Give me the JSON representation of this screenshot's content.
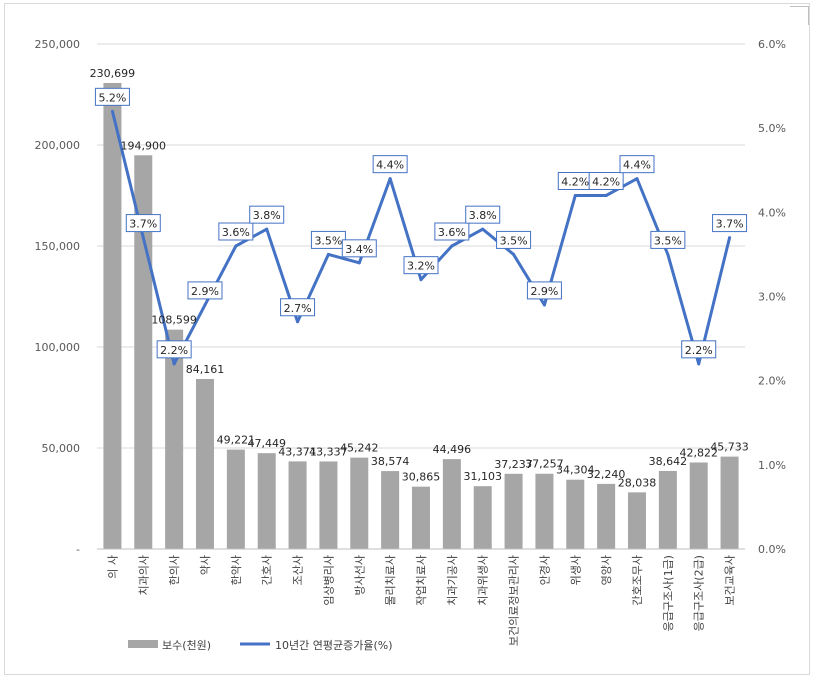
{
  "chart_data": {
    "type": "bar+line",
    "categories": [
      "의 사",
      "치과의사",
      "한의사",
      "약사",
      "한약사",
      "간호사",
      "조산사",
      "임상병리사",
      "방사선사",
      "물리치료사",
      "작업치료사",
      "치과기공사",
      "치과위생사",
      "보건의료정보관리사",
      "안경사",
      "위생사",
      "영양사",
      "간호조무사",
      "응급구조사(1급)",
      "응급구조사(2급)",
      "보건교육사"
    ],
    "series": [
      {
        "name": "보수(천원)",
        "kind": "bar",
        "axis": "left",
        "color": "#a6a6a6",
        "values": [
          230699,
          194900,
          108599,
          84161,
          49221,
          47449,
          43371,
          43337,
          45242,
          38574,
          30865,
          44496,
          31103,
          37237,
          37257,
          34304,
          32240,
          28038,
          38642,
          42822,
          45733
        ],
        "labels": [
          "230,699",
          "194,900",
          "108,599",
          "84,161",
          "49,221",
          "47,449",
          "43,371",
          "43,337",
          "45,242",
          "38,574",
          "30,865",
          "44,496",
          "31,103",
          "37,237",
          "37,257",
          "34,304",
          "32,240",
          "28,038",
          "38,642",
          "42,822",
          "45,733"
        ]
      },
      {
        "name": "10년간 연평균증가율(%)",
        "kind": "line",
        "axis": "right",
        "color": "#4472c4",
        "values": [
          5.2,
          3.7,
          2.2,
          2.9,
          3.6,
          3.8,
          2.7,
          3.5,
          3.4,
          4.4,
          3.2,
          3.6,
          3.8,
          3.5,
          2.9,
          4.2,
          4.2,
          4.4,
          3.5,
          2.2,
          3.7
        ],
        "labels": [
          "5.2%",
          "3.7%",
          "2.2%",
          "2.9%",
          "3.6%",
          "3.8%",
          "2.7%",
          "3.5%",
          "3.4%",
          "4.4%",
          "3.2%",
          "3.6%",
          "3.8%",
          "3.5%",
          "2.9%",
          "4.2%",
          "4.2%",
          "4.4%",
          "3.5%",
          "2.2%",
          "3.7%"
        ]
      }
    ],
    "y_left": {
      "min": 0,
      "max": 250000,
      "ticks": [
        "-",
        "50,000",
        "100,000",
        "150,000",
        "200,000",
        "250,000"
      ]
    },
    "y_right": {
      "min": 0,
      "max": 6,
      "ticks": [
        "0.0%",
        "1.0%",
        "2.0%",
        "3.0%",
        "4.0%",
        "5.0%",
        "6.0%"
      ]
    },
    "grid": true,
    "legend_position": "bottom-left"
  }
}
